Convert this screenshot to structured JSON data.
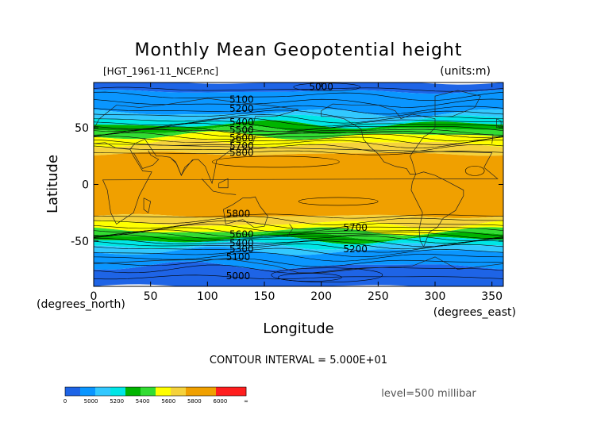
{
  "chart_data": {
    "type": "heatmap",
    "title": "Monthly Mean Geopotential height",
    "file_label": "[HGT_1961-11_NCEP.nc]",
    "units_label": "(units:m)",
    "xlabel": "Longitude",
    "ylabel": "Latitude",
    "x_unit_label": "(degrees_east)",
    "y_unit_label": "(degrees_north)",
    "xlim": [
      0,
      360
    ],
    "ylim": [
      -90,
      90
    ],
    "x_ticks": [
      0,
      50,
      100,
      150,
      200,
      250,
      300,
      350
    ],
    "y_ticks": [
      -50,
      0,
      50
    ],
    "contour_interval_text": "CONTOUR INTERVAL = 5.000E+01",
    "level_text": "level=500 millibar",
    "colorbar": {
      "tick_labels": [
        "0",
        "5000",
        "5200",
        "5400",
        "5600",
        "5800",
        "6000",
        "∞"
      ],
      "colors": [
        "#1e64e6",
        "#0a96ff",
        "#32c8ff",
        "#00e6e6",
        "#00b400",
        "#32dc32",
        "#ffff00",
        "#f5d23c",
        "#f0a000",
        "#f0a000",
        "#ff1e1e",
        "#ff1e1e"
      ]
    },
    "contour_labels": [
      {
        "text": "5000",
        "lon": 200,
        "lat": 86
      },
      {
        "text": "5100",
        "lon": 130,
        "lat": 75
      },
      {
        "text": "5200",
        "lon": 130,
        "lat": 67
      },
      {
        "text": "5400",
        "lon": 130,
        "lat": 55
      },
      {
        "text": "5500",
        "lon": 130,
        "lat": 48
      },
      {
        "text": "5600",
        "lon": 130,
        "lat": 41
      },
      {
        "text": "5700",
        "lon": 130,
        "lat": 34
      },
      {
        "text": "5800",
        "lon": 130,
        "lat": 28
      },
      {
        "text": "5800",
        "lon": 127,
        "lat": -26
      },
      {
        "text": "5700",
        "lon": 230,
        "lat": -38
      },
      {
        "text": "5600",
        "lon": 130,
        "lat": -44
      },
      {
        "text": "5400",
        "lon": 130,
        "lat": -52
      },
      {
        "text": "5300",
        "lon": 130,
        "lat": -57
      },
      {
        "text": "5200",
        "lon": 230,
        "lat": -57
      },
      {
        "text": "5100",
        "lon": 127,
        "lat": -64
      },
      {
        "text": "5000",
        "lon": 127,
        "lat": -81
      }
    ],
    "zonal_bands": [
      {
        "lat_from": 90,
        "lat_to": 82,
        "color": "#1e64e6"
      },
      {
        "lat_from": 82,
        "lat_to": 63,
        "color": "#0a96ff"
      },
      {
        "lat_from": 63,
        "lat_to": 58,
        "color": "#32c8ff"
      },
      {
        "lat_from": 58,
        "lat_to": 53,
        "color": "#00e6e6"
      },
      {
        "lat_from": 53,
        "lat_to": 48,
        "color": "#00b400"
      },
      {
        "lat_from": 48,
        "lat_to": 43,
        "color": "#32dc32"
      },
      {
        "lat_from": 43,
        "lat_to": 36,
        "color": "#ffff00"
      },
      {
        "lat_from": 36,
        "lat_to": 27,
        "color": "#f5d23c"
      },
      {
        "lat_from": 27,
        "lat_to": -28,
        "color": "#f0a000"
      },
      {
        "lat_from": -28,
        "lat_to": -35,
        "color": "#f5d23c"
      },
      {
        "lat_from": -35,
        "lat_to": -41,
        "color": "#ffff00"
      },
      {
        "lat_from": -41,
        "lat_to": -45,
        "color": "#32dc32"
      },
      {
        "lat_from": -45,
        "lat_to": -49,
        "color": "#00b400"
      },
      {
        "lat_from": -49,
        "lat_to": -54,
        "color": "#00e6e6"
      },
      {
        "lat_from": -54,
        "lat_to": -59,
        "color": "#32c8ff"
      },
      {
        "lat_from": -59,
        "lat_to": -72,
        "color": "#0a96ff"
      },
      {
        "lat_from": -72,
        "lat_to": -90,
        "color": "#1e64e6"
      }
    ]
  }
}
